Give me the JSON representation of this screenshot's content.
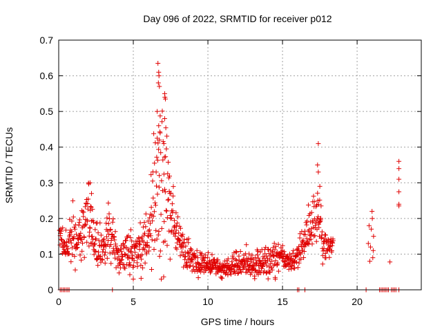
{
  "chart_data": {
    "type": "scatter",
    "title": "Day 096 of 2022, SRMTID for receiver p012",
    "xlabel": "GPS time / hours",
    "ylabel": "SRMTID / TECUs",
    "xlim": [
      0,
      24.3
    ],
    "ylim": [
      0,
      0.7
    ],
    "x_ticks": [
      0,
      5,
      10,
      15,
      20
    ],
    "y_ticks": [
      0,
      0.1,
      0.2,
      0.3,
      0.4,
      0.5,
      0.6,
      0.7
    ],
    "grid": true,
    "marker": "plus",
    "series_color": "#e00000",
    "seed": 96,
    "profile": [
      [
        0.0,
        0.17,
        0.03
      ],
      [
        0.5,
        0.12,
        0.02
      ],
      [
        1.0,
        0.16,
        0.045
      ],
      [
        1.5,
        0.13,
        0.03
      ],
      [
        2.0,
        0.22,
        0.05
      ],
      [
        2.5,
        0.13,
        0.035
      ],
      [
        3.0,
        0.12,
        0.025
      ],
      [
        3.5,
        0.16,
        0.04
      ],
      [
        4.0,
        0.09,
        0.02
      ],
      [
        4.5,
        0.11,
        0.03
      ],
      [
        5.0,
        0.1,
        0.025
      ],
      [
        5.5,
        0.13,
        0.035
      ],
      [
        6.0,
        0.15,
        0.04
      ],
      [
        6.5,
        0.27,
        0.1
      ],
      [
        6.8,
        0.33,
        0.14
      ],
      [
        7.2,
        0.28,
        0.11
      ],
      [
        7.6,
        0.2,
        0.05
      ],
      [
        8.0,
        0.16,
        0.04
      ],
      [
        8.5,
        0.1,
        0.025
      ],
      [
        9.0,
        0.08,
        0.02
      ],
      [
        10.0,
        0.07,
        0.015
      ],
      [
        11.0,
        0.055,
        0.012
      ],
      [
        12.0,
        0.07,
        0.02
      ],
      [
        13.0,
        0.075,
        0.02
      ],
      [
        14.0,
        0.08,
        0.02
      ],
      [
        15.0,
        0.09,
        0.02
      ],
      [
        15.8,
        0.08,
        0.015
      ],
      [
        16.5,
        0.14,
        0.03
      ],
      [
        17.0,
        0.18,
        0.04
      ],
      [
        17.3,
        0.22,
        0.06
      ],
      [
        17.7,
        0.15,
        0.03
      ],
      [
        18.0,
        0.12,
        0.015
      ],
      [
        18.4,
        0.13,
        0.01
      ]
    ],
    "gaps": [
      [
        18.45,
        20.5
      ],
      [
        21.15,
        22.6
      ]
    ],
    "late_points": [
      [
        20.8,
        0.18
      ],
      [
        20.9,
        0.12
      ],
      [
        21.0,
        0.22
      ],
      [
        21.05,
        0.09
      ],
      [
        21.1,
        0.15
      ],
      [
        20.85,
        0.08
      ],
      [
        20.95,
        0.17
      ],
      [
        21.02,
        0.2
      ],
      [
        20.75,
        0.13
      ],
      [
        21.08,
        0.11
      ],
      [
        22.2,
        0.078
      ],
      [
        22.8,
        0.36
      ],
      [
        22.8,
        0.34
      ],
      [
        22.8,
        0.31
      ],
      [
        22.8,
        0.275
      ],
      [
        22.8,
        0.24
      ],
      [
        22.8,
        0.235
      ]
    ],
    "spikes": [
      [
        6.65,
        0.635
      ],
      [
        6.7,
        0.61
      ],
      [
        6.72,
        0.6
      ],
      [
        6.68,
        0.58
      ],
      [
        6.75,
        0.57
      ],
      [
        7.1,
        0.55
      ],
      [
        7.12,
        0.54
      ],
      [
        7.15,
        0.535
      ],
      [
        6.6,
        0.5
      ],
      [
        7.1,
        0.48
      ],
      [
        6.7,
        0.46
      ],
      [
        6.8,
        0.44
      ],
      [
        7.05,
        0.41
      ],
      [
        6.75,
        0.42
      ],
      [
        17.4,
        0.41
      ],
      [
        17.35,
        0.35
      ],
      [
        17.4,
        0.33
      ],
      [
        17.5,
        0.29
      ],
      [
        2.1,
        0.3
      ],
      [
        2.2,
        0.27
      ]
    ],
    "zero_points": [
      0.1,
      0.2,
      0.3,
      0.4,
      0.5,
      0.6,
      0.7,
      3.6,
      16.0,
      16.1,
      16.5,
      20.6,
      21.5,
      21.6,
      21.7,
      21.8,
      21.9,
      22.0,
      22.1,
      22.3,
      22.4,
      22.5,
      22.6,
      22.8
    ]
  }
}
